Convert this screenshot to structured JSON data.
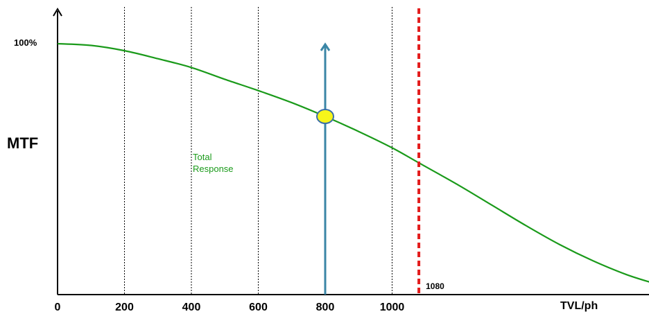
{
  "chart_data": {
    "type": "line",
    "title": "",
    "xlabel": "TVL/ph",
    "ylabel": "MTF",
    "xlim": [
      0,
      1780
    ],
    "ylim": [
      0,
      100
    ],
    "x_ticks": [
      0,
      200,
      400,
      600,
      800,
      1000
    ],
    "x_tick_labels": [
      "0",
      "200",
      "400",
      "600",
      "800",
      "1000"
    ],
    "y_tick_label": "100%",
    "vertical_gridlines": [
      200,
      400,
      600,
      1000
    ],
    "grid": "vertical dotted",
    "series": [
      {
        "name": "Total Response",
        "color": "#1a9a1a",
        "x": [
          0,
          100,
          200,
          300,
          400,
          500,
          600,
          700,
          800,
          900,
          1000,
          1080,
          1200,
          1300,
          1400,
          1500,
          1600,
          1700,
          1780
        ],
        "y": [
          100,
          99.3,
          97.2,
          94,
          90.5,
          85.8,
          81.3,
          76.5,
          71,
          65,
          58.5,
          52.5,
          43.5,
          35.5,
          27.5,
          20,
          13.5,
          8,
          4.6
        ]
      }
    ],
    "annotations": {
      "marker_line": {
        "x": 1080,
        "label": "1080",
        "color": "#e31b1b",
        "style": "dashed"
      },
      "arrow": {
        "x": 800,
        "color": "#3b86a6"
      },
      "highlight_point": {
        "x": 800,
        "y": 71,
        "fill": "#f7f51a",
        "stroke": "#3b6fa8"
      }
    }
  }
}
